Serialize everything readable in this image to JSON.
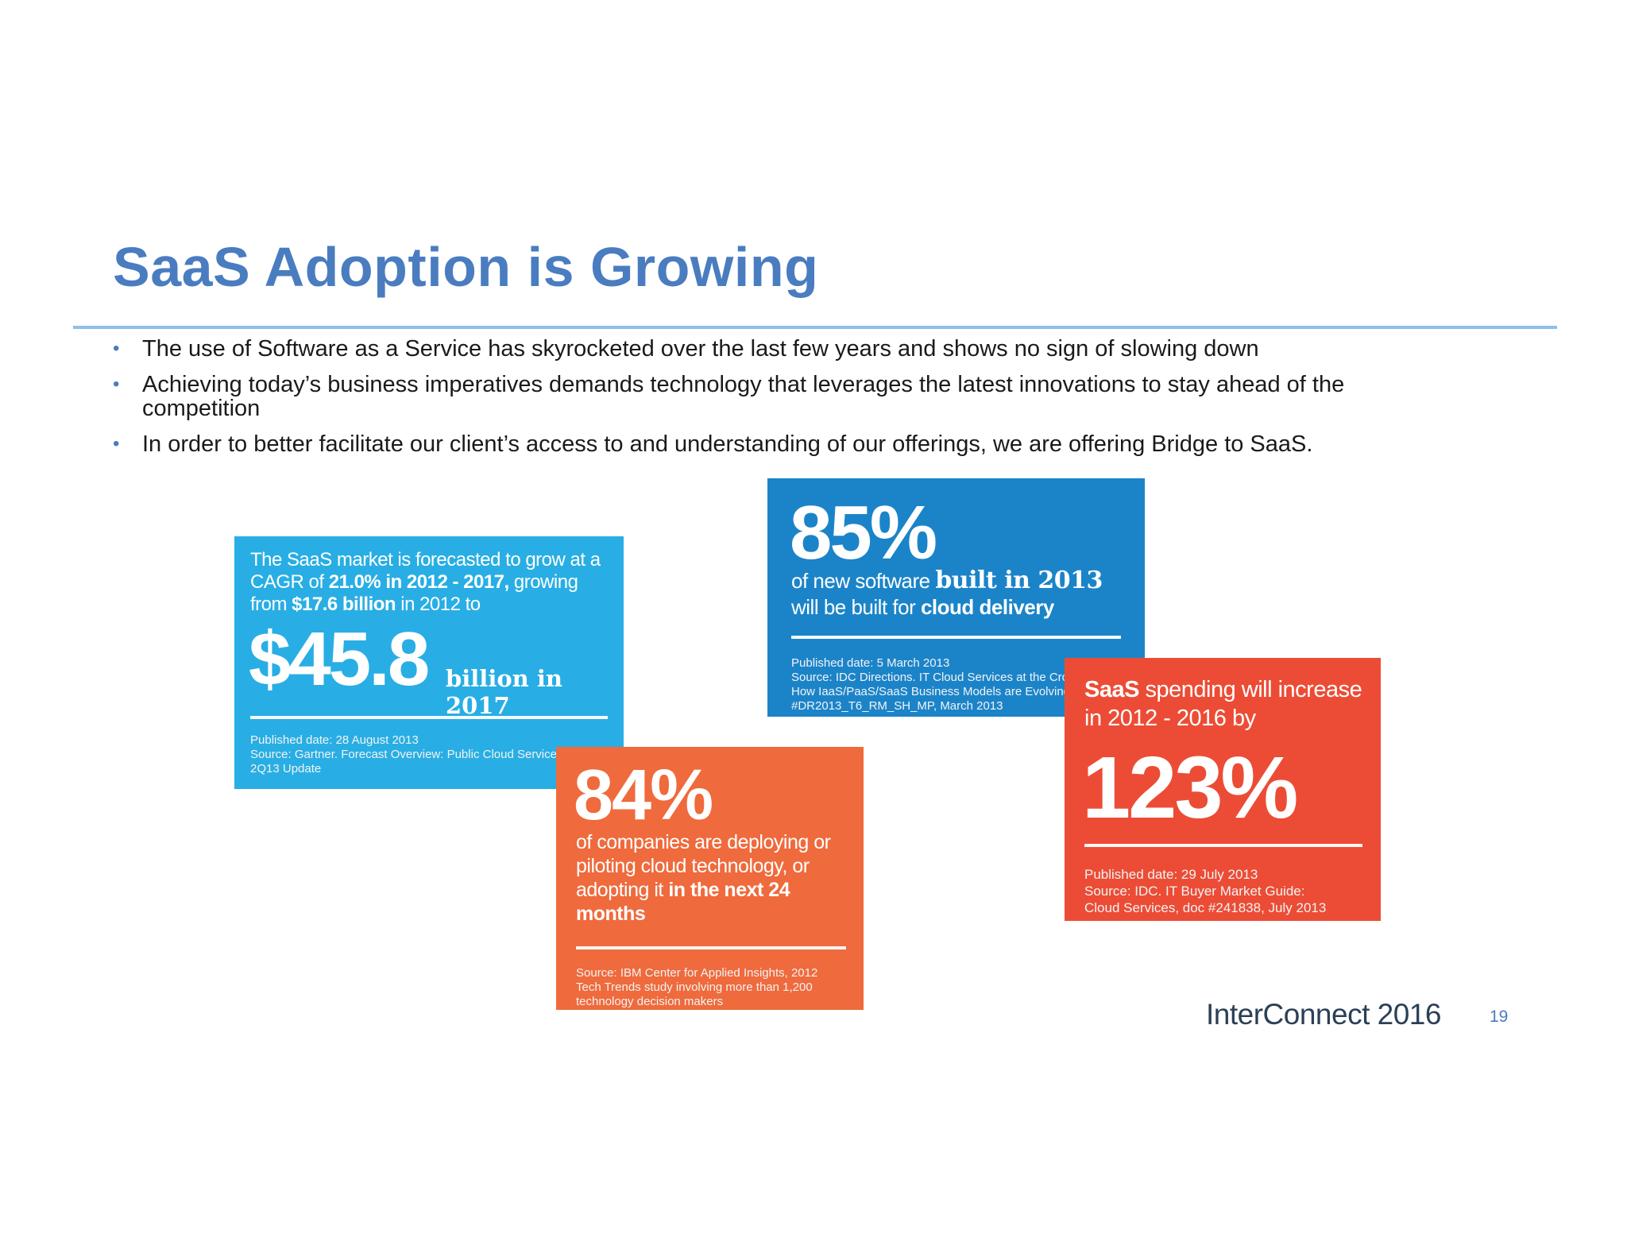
{
  "slide": {
    "title": "SaaS Adoption is Growing",
    "bullets": [
      "The use of Software as a Service has skyrocketed over the last few years and shows no sign of slowing down",
      "Achieving today’s business imperatives demands technology that leverages the latest innovations to stay ahead of the competition",
      "In order to better facilitate our client’s access to and understanding of our offerings, we are offering Bridge to SaaS."
    ],
    "bullet_symbol": "•",
    "title_color": "#4a7cc0"
  },
  "cards": {
    "saas_market": {
      "color": "#28aee4",
      "intro_1": "The SaaS market is forecasted to grow at a CAGR of ",
      "intro_b1": "21.0% in 2012 - 2017,",
      "intro_2": " growing from ",
      "intro_b2": "$17.6 billion",
      "intro_3": " in 2012 to",
      "big": "$45.8",
      "unit": "billion in 2017",
      "source_1": "Published date: 28 August 2013",
      "source_2": "Source: Gartner. Forecast Overview: Public Cloud Services, Wo",
      "source_3": "2Q13 Update"
    },
    "new_software": {
      "color": "#1b84c9",
      "big": "85%",
      "desc_1": "of new software ",
      "desc_b1": "built in 2013",
      "desc_2": "will be built for ",
      "desc_b2": "cloud delivery",
      "source_1": "Published date: 5 March 2013",
      "source_2": "Source: IDC Directions. IT Cloud Services at the Cro",
      "source_3": "How IaaS/PaaS/SaaS Business Models are Evolving",
      "source_4": "#DR2013_T6_RM_SH_MP, March 2013"
    },
    "companies": {
      "color": "#ef6a3c",
      "big": "84%",
      "desc_1": "of companies are deploying or piloting cloud technology, or adopting it ",
      "desc_b1": "in the next 24 months",
      "source_1": "Source: IBM Center for Applied Insights, 2012",
      "source_2": "Tech Trends study involving more than 1,200",
      "source_3": "technology decision makers"
    },
    "spending": {
      "color": "#ec4c35",
      "intro_b1": "SaaS",
      "intro_1": " spending will increase in 2012 - 2016 by",
      "big": "123%",
      "source_1": "Published date: 29 July 2013",
      "source_2": "Source: IDC. IT Buyer Market Guide:",
      "source_3": "Cloud Services, doc #241838, July 2013"
    }
  },
  "footer": {
    "brand": "InterConnect 2016",
    "page_number": "19"
  }
}
